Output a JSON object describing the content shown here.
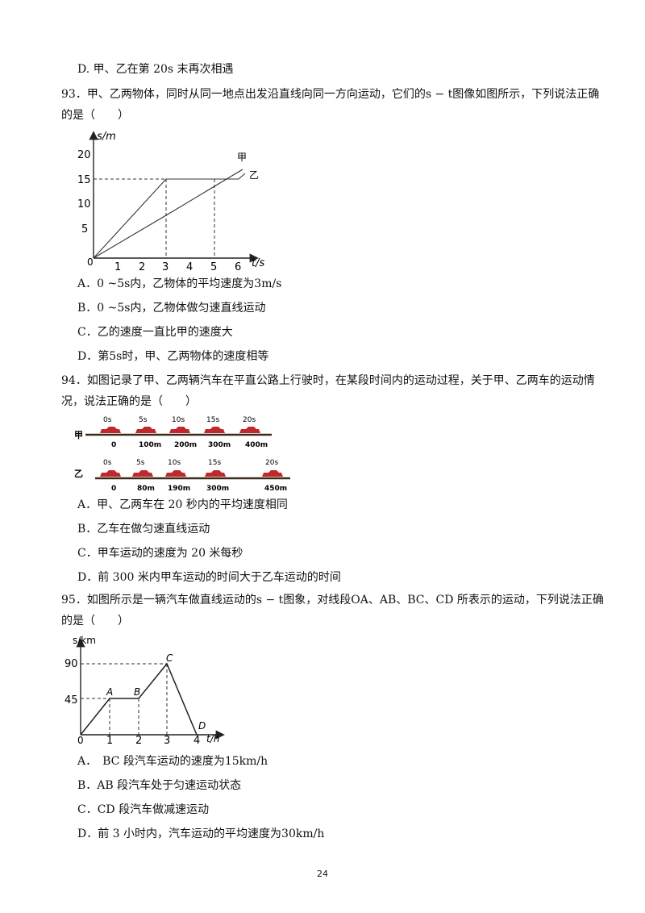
{
  "page_number": "24",
  "q92": {
    "option_d": "D. 甲、乙在第 20s 末再次相遇"
  },
  "q93": {
    "stem_line1": "93．甲、乙两物体，同时从同一地点出发沿直线向同一方向运动，它们的s − t图像如图所示，下列说法正确",
    "stem_line2": "的是（　　）",
    "graph": {
      "y_axis_label": "s/m",
      "x_axis_label": "t/s",
      "origin": "0",
      "y_ticks": [
        "20",
        "15",
        "10",
        "5"
      ],
      "x_ticks": [
        "1",
        "2",
        "3",
        "4",
        "5",
        "6"
      ],
      "label_jia": "甲",
      "label_yi": "乙"
    },
    "chart_data": {
      "type": "line",
      "xlabel": "t/s",
      "ylabel": "s/m",
      "xlim": [
        0,
        6.7
      ],
      "ylim": [
        0,
        20
      ],
      "series": [
        {
          "name": "甲",
          "x": [
            0,
            3,
            6
          ],
          "y": [
            0,
            9,
            18
          ]
        },
        {
          "name": "乙",
          "x": [
            0,
            3,
            5,
            6
          ],
          "y": [
            0,
            15,
            15,
            15
          ]
        }
      ]
    },
    "options": [
      "A．0 ~5s内，乙物体的平均速度为3m/s",
      "B．0 ~5s内，乙物体做匀速直线运动",
      "C．乙的速度一直比甲的速度大",
      "D．第5s时，甲、乙两物体的速度相等"
    ]
  },
  "q94": {
    "stem_line1": "94．如图记录了甲、乙两辆汽车在平直公路上行驶时，在某段时间内的运动过程，关于甲、乙两车的运动情",
    "stem_line2": "况，说法正确的是（　　）",
    "diagram": {
      "row_jia": {
        "label": "甲",
        "times": [
          "0s",
          "5s",
          "10s",
          "15s",
          "20s"
        ],
        "distances": [
          "0",
          "100m",
          "200m",
          "300m",
          "400m"
        ]
      },
      "row_yi": {
        "label": "乙",
        "times": [
          "0s",
          "5s",
          "10s",
          "15s",
          "20s"
        ],
        "distances": [
          "0",
          "80m",
          "190m",
          "300m",
          "450m"
        ]
      }
    },
    "options": [
      "A．甲、乙两车在 20 秒内的平均速度相同",
      "B．乙车在做匀速直线运动",
      "C．甲车运动的速度为 20 米每秒",
      "D．前 300 米内甲车运动的时间大于乙车运动的时间"
    ]
  },
  "q95": {
    "stem_line1": "95．如图所示是一辆汽车做直线运动的s − t图象，对线段OA、AB、BC、CD 所表示的运动，下列说法正确",
    "stem_line2": "的是（　　）",
    "graph": {
      "y_axis_label": "s/km",
      "x_axis_label": "t/h",
      "origin": "0",
      "y_ticks": [
        "90",
        "45"
      ],
      "x_ticks": [
        "1",
        "2",
        "3",
        "4"
      ],
      "point_labels": [
        "A",
        "B",
        "C",
        "D"
      ]
    },
    "chart_data": {
      "type": "line",
      "xlabel": "t/h",
      "ylabel": "s/km",
      "xlim": [
        0,
        4.5
      ],
      "ylim": [
        0,
        90
      ],
      "series": [
        {
          "x": [
            0,
            1,
            2,
            3,
            4
          ],
          "y": [
            0,
            45,
            45,
            90,
            0
          ]
        }
      ]
    },
    "options": [
      "A．　BC 段汽车运动的速度为15km/h",
      "B．AB 段汽车处于匀速运动状态",
      "C．CD 段汽车做减速运动",
      "D．前 3 小时内，汽车运动的平均速度为30km/h"
    ]
  }
}
